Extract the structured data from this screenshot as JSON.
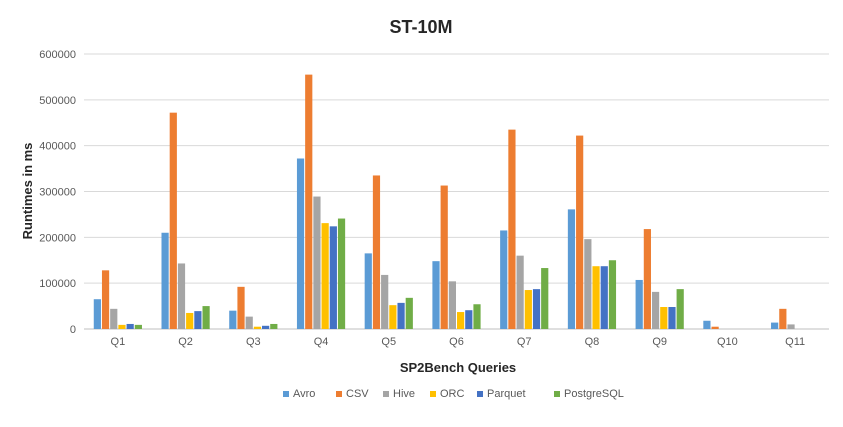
{
  "chart_data": {
    "type": "bar",
    "title": "ST-10M",
    "xlabel": "SP2Bench Queries",
    "ylabel": "Runtimes in ms",
    "ylim": [
      0,
      600000
    ],
    "yticks": [
      0,
      100000,
      200000,
      300000,
      400000,
      500000,
      600000
    ],
    "ytick_labels": [
      "0",
      "100000",
      "200000",
      "300000",
      "400000",
      "500000",
      "600000"
    ],
    "grid": true,
    "legend_position": "bottom",
    "categories": [
      "Q1",
      "Q2",
      "Q3",
      "Q4",
      "Q5",
      "Q6",
      "Q7",
      "Q8",
      "Q9",
      "Q10",
      "Q11"
    ],
    "series": [
      {
        "name": "Avro",
        "color": "#5b9bd5",
        "values": [
          65000,
          210000,
          40000,
          372000,
          165000,
          148000,
          215000,
          261000,
          107000,
          18000,
          14000
        ]
      },
      {
        "name": "CSV",
        "color": "#ed7d31",
        "values": [
          128000,
          472000,
          92000,
          555000,
          335000,
          313000,
          435000,
          422000,
          218000,
          5000,
          44000
        ]
      },
      {
        "name": "Hive",
        "color": "#a5a5a5",
        "values": [
          44000,
          143000,
          27000,
          289000,
          118000,
          104000,
          160000,
          196000,
          81000,
          0,
          10000
        ]
      },
      {
        "name": "ORC",
        "color": "#ffc000",
        "values": [
          9000,
          35000,
          5000,
          231000,
          52000,
          37000,
          85000,
          137000,
          48000,
          0,
          0
        ]
      },
      {
        "name": "Parquet",
        "color": "#4472c4",
        "values": [
          11000,
          39000,
          7000,
          224000,
          57000,
          41000,
          87000,
          137000,
          48000,
          0,
          0
        ]
      },
      {
        "name": "PostgreSQL",
        "color": "#70ad47",
        "values": [
          9000,
          50000,
          11000,
          241000,
          68000,
          54000,
          133000,
          150000,
          87000,
          0,
          0
        ]
      }
    ]
  }
}
